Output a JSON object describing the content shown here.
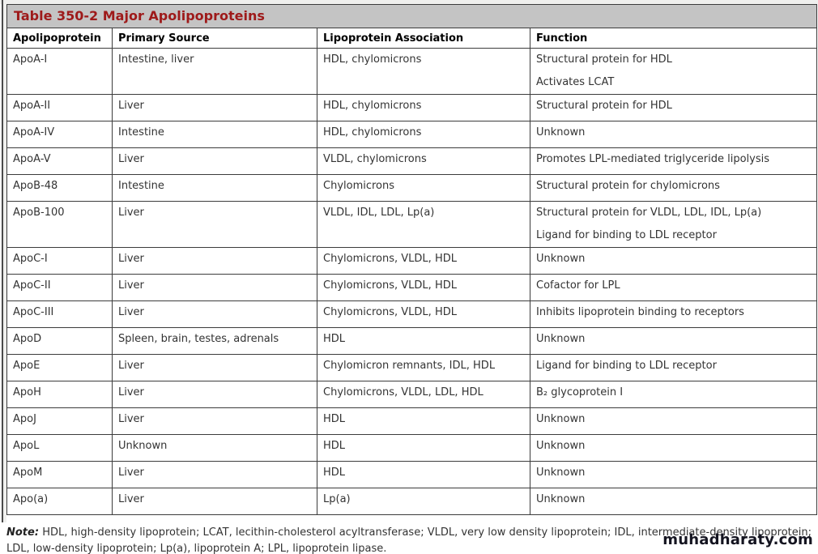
{
  "title": "Table 350-2 Major Apolipoproteins",
  "columns": [
    "Apolipoprotein",
    "Primary Source",
    "Lipoprotein Association",
    "Function"
  ],
  "rows": [
    {
      "name": "ApoA-I",
      "source": "Intestine, liver",
      "association": "HDL, chylomicrons",
      "functions": [
        "Structural protein for HDL",
        "Activates LCAT"
      ]
    },
    {
      "name": "ApoA-II",
      "source": "Liver",
      "association": "HDL, chylomicrons",
      "functions": [
        "Structural protein for HDL"
      ]
    },
    {
      "name": "ApoA-IV",
      "source": "Intestine",
      "association": "HDL, chylomicrons",
      "functions": [
        "Unknown"
      ]
    },
    {
      "name": "ApoA-V",
      "source": "Liver",
      "association": "VLDL, chylomicrons",
      "functions": [
        "Promotes LPL-mediated triglyceride lipolysis"
      ]
    },
    {
      "name": "ApoB-48",
      "source": "Intestine",
      "association": "Chylomicrons",
      "functions": [
        "Structural protein for chylomicrons"
      ]
    },
    {
      "name": "ApoB-100",
      "source": "Liver",
      "association": "VLDL, IDL, LDL, Lp(a)",
      "functions": [
        "Structural protein for VLDL, LDL, IDL, Lp(a)",
        "Ligand for binding to LDL receptor"
      ]
    },
    {
      "name": "ApoC-I",
      "source": "Liver",
      "association": "Chylomicrons, VLDL, HDL",
      "functions": [
        "Unknown"
      ]
    },
    {
      "name": "ApoC-II",
      "source": "Liver",
      "association": "Chylomicrons, VLDL, HDL",
      "functions": [
        "Cofactor for LPL"
      ]
    },
    {
      "name": "ApoC-III",
      "source": "Liver",
      "association": "Chylomicrons, VLDL, HDL",
      "functions": [
        "Inhibits lipoprotein binding to receptors"
      ]
    },
    {
      "name": "ApoD",
      "source": "Spleen, brain, testes, adrenals",
      "association": "HDL",
      "functions": [
        "Unknown"
      ]
    },
    {
      "name": "ApoE",
      "source": "Liver",
      "association": "Chylomicron remnants, IDL, HDL",
      "functions": [
        "Ligand for binding to LDL receptor"
      ]
    },
    {
      "name": "ApoH",
      "source": "Liver",
      "association": "Chylomicrons, VLDL, LDL, HDL",
      "functions": [
        "B₂ glycoprotein I"
      ]
    },
    {
      "name": "ApoJ",
      "source": "Liver",
      "association": "HDL",
      "functions": [
        "Unknown"
      ]
    },
    {
      "name": "ApoL",
      "source": "Unknown",
      "association": "HDL",
      "functions": [
        "Unknown"
      ]
    },
    {
      "name": "ApoM",
      "source": "Liver",
      "association": "HDL",
      "functions": [
        "Unknown"
      ]
    },
    {
      "name": "Apo(a)",
      "source": "Liver",
      "association": "Lp(a)",
      "functions": [
        "Unknown"
      ]
    }
  ],
  "note": {
    "label": "Note:",
    "text": "HDL, high-density lipoprotein; LCAT, lecithin-cholesterol acyltransferase; VLDL, very low density lipoprotein; IDL, intermediate-density lipoprotein; LDL, low-density lipoprotein; Lp(a), lipoprotein A; LPL, lipoprotein lipase."
  },
  "watermark": "muhadharaty.com",
  "colors": {
    "title_text": "#9e1a1a",
    "title_bar_bg": "#c4c4c4",
    "border": "#3c3c3c",
    "body_text": "#333333",
    "watermark_text": "#141420"
  }
}
